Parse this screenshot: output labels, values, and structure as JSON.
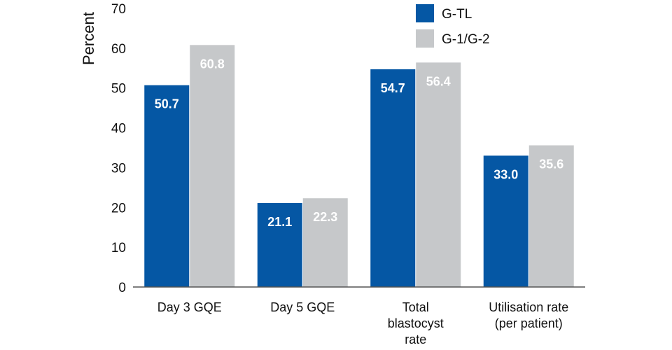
{
  "chart_data": {
    "type": "bar",
    "ylabel": "Percent",
    "ylim": [
      0,
      70
    ],
    "yticks": [
      0,
      10,
      20,
      30,
      40,
      50,
      60,
      70
    ],
    "categories": [
      [
        "Day 3 GQE"
      ],
      [
        "Day 5 GQE"
      ],
      [
        "Total",
        "blastocyst",
        "rate"
      ],
      [
        "Utilisation rate",
        "(per patient)"
      ]
    ],
    "series": [
      {
        "name": "G-TL",
        "color": "#0557a4",
        "values": [
          50.7,
          21.1,
          54.7,
          33.0
        ],
        "labels": [
          "50.7",
          "21.1",
          "54.7",
          "33.0"
        ]
      },
      {
        "name": "G-1/G-2",
        "color": "#c6c8ca",
        "values": [
          60.8,
          22.3,
          56.4,
          35.6
        ],
        "labels": [
          "60.8",
          "22.3",
          "56.4",
          "35.6"
        ]
      }
    ],
    "legend_position": "top-right",
    "grid": false
  }
}
